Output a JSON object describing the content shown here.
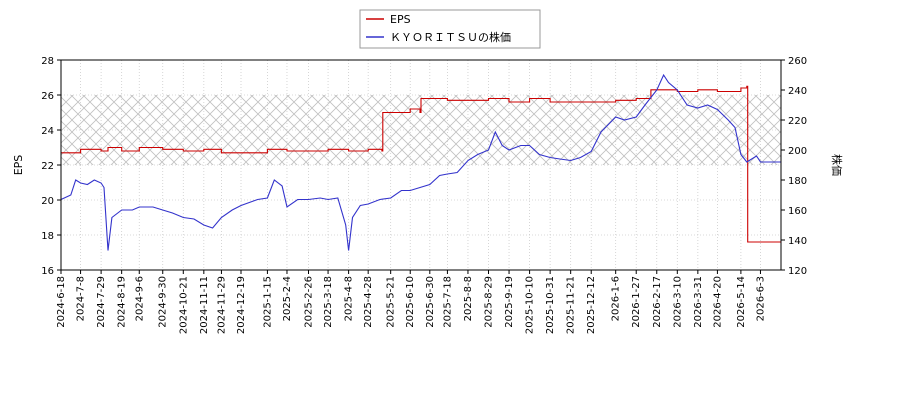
{
  "chart_data": {
    "type": "line",
    "title": "",
    "legend": {
      "placement": "top-center",
      "entries": [
        {
          "name": "EPS",
          "color": "#cc0000"
        },
        {
          "name": "ＫＹＯＲＩＴＳＵの株価",
          "color": "#3333cc"
        }
      ]
    },
    "y_left": {
      "label": "EPS",
      "range": [
        16,
        28
      ],
      "ticks": [
        "16",
        "18",
        "20",
        "22",
        "24",
        "26",
        "28"
      ]
    },
    "y_right": {
      "label": "株価",
      "range": [
        120,
        260
      ],
      "ticks": [
        "120",
        "140",
        "160",
        "180",
        "200",
        "220",
        "240",
        "260"
      ]
    },
    "x": {
      "range": [
        "2024-06-18",
        "2026-06-24"
      ],
      "tick_labels": [
        "2024-6-18",
        "2024-7-8",
        "2024-7-29",
        "2024-8-19",
        "2024-9-6",
        "2024-9-30",
        "2024-10-21",
        "2024-11-11",
        "2024-11-29",
        "2024-12-19",
        "2025-1-15",
        "2025-2-4",
        "2025-2-26",
        "2025-3-18",
        "2025-4-8",
        "2025-4-28",
        "2025-5-21",
        "2025-6-10",
        "2025-6-30",
        "2025-7-18",
        "2025-8-8",
        "2025-8-29",
        "2025-9-19",
        "2025-10-10",
        "2025-10-31",
        "2025-11-21",
        "2025-12-12",
        "2026-1-6",
        "2026-1-27",
        "2026-2-17",
        "2026-3-10",
        "2026-3-31",
        "2026-4-20",
        "2026-5-14",
        "2026-6-3"
      ]
    },
    "shaded_band": {
      "axis": "left",
      "from": 22,
      "to": 26,
      "pattern": "crosshatch"
    },
    "grid": true,
    "series": [
      {
        "name": "EPS",
        "axis": "left",
        "color": "#cc0000",
        "points": [
          [
            "2024-6-18",
            22.7
          ],
          [
            "2024-7-8",
            22.9
          ],
          [
            "2024-7-29",
            22.8
          ],
          [
            "2024-8-5",
            23.0
          ],
          [
            "2024-8-19",
            22.8
          ],
          [
            "2024-9-6",
            23.0
          ],
          [
            "2024-9-30",
            22.9
          ],
          [
            "2024-10-21",
            22.8
          ],
          [
            "2024-11-11",
            22.9
          ],
          [
            "2024-11-29",
            22.7
          ],
          [
            "2024-12-19",
            22.7
          ],
          [
            "2025-1-15",
            22.9
          ],
          [
            "2025-2-4",
            22.8
          ],
          [
            "2025-2-26",
            22.8
          ],
          [
            "2025-3-18",
            22.9
          ],
          [
            "2025-4-8",
            22.8
          ],
          [
            "2025-4-28",
            22.9
          ],
          [
            "2025-5-12",
            22.8
          ],
          [
            "2025-5-13",
            25.0
          ],
          [
            "2025-5-21",
            25.0
          ],
          [
            "2025-6-10",
            25.2
          ],
          [
            "2025-6-20",
            25.0
          ],
          [
            "2025-6-21",
            25.8
          ],
          [
            "2025-6-30",
            25.8
          ],
          [
            "2025-7-18",
            25.7
          ],
          [
            "2025-8-8",
            25.7
          ],
          [
            "2025-8-29",
            25.8
          ],
          [
            "2025-9-19",
            25.6
          ],
          [
            "2025-10-10",
            25.8
          ],
          [
            "2025-10-31",
            25.6
          ],
          [
            "2025-11-21",
            25.6
          ],
          [
            "2025-12-12",
            25.6
          ],
          [
            "2026-1-6",
            25.7
          ],
          [
            "2026-1-27",
            25.8
          ],
          [
            "2026-2-10",
            25.8
          ],
          [
            "2026-2-11",
            26.3
          ],
          [
            "2026-2-17",
            26.3
          ],
          [
            "2026-3-10",
            26.2
          ],
          [
            "2026-3-31",
            26.3
          ],
          [
            "2026-4-20",
            26.2
          ],
          [
            "2026-5-10",
            26.2
          ],
          [
            "2026-5-14",
            26.4
          ],
          [
            "2026-5-20",
            26.5
          ],
          [
            "2026-5-21",
            17.6
          ],
          [
            "2026-6-24",
            17.6
          ]
        ]
      },
      {
        "name": "ＫＹＯＲＩＴＳＵの株価",
        "axis": "right",
        "color": "#3333cc",
        "points": [
          [
            "2024-6-18",
            167
          ],
          [
            "2024-6-28",
            170
          ],
          [
            "2024-7-3",
            180
          ],
          [
            "2024-7-8",
            178
          ],
          [
            "2024-7-15",
            177
          ],
          [
            "2024-7-22",
            180
          ],
          [
            "2024-7-29",
            178
          ],
          [
            "2024-8-1",
            175
          ],
          [
            "2024-8-5",
            133
          ],
          [
            "2024-8-9",
            155
          ],
          [
            "2024-8-19",
            160
          ],
          [
            "2024-8-30",
            160
          ],
          [
            "2024-9-6",
            162
          ],
          [
            "2024-9-20",
            162
          ],
          [
            "2024-9-30",
            160
          ],
          [
            "2024-10-10",
            158
          ],
          [
            "2024-10-21",
            155
          ],
          [
            "2024-11-1",
            154
          ],
          [
            "2024-11-11",
            150
          ],
          [
            "2024-11-20",
            148
          ],
          [
            "2024-11-29",
            155
          ],
          [
            "2024-12-10",
            160
          ],
          [
            "2024-12-19",
            163
          ],
          [
            "2025-1-5",
            167
          ],
          [
            "2025-1-15",
            168
          ],
          [
            "2025-1-22",
            180
          ],
          [
            "2025-1-30",
            176
          ],
          [
            "2025-2-4",
            162
          ],
          [
            "2025-2-15",
            167
          ],
          [
            "2025-2-26",
            167
          ],
          [
            "2025-3-10",
            168
          ],
          [
            "2025-3-18",
            167
          ],
          [
            "2025-3-28",
            168
          ],
          [
            "2025-4-5",
            150
          ],
          [
            "2025-4-8",
            133
          ],
          [
            "2025-4-12",
            155
          ],
          [
            "2025-4-20",
            163
          ],
          [
            "2025-4-28",
            164
          ],
          [
            "2025-5-10",
            167
          ],
          [
            "2025-5-21",
            168
          ],
          [
            "2025-6-1",
            173
          ],
          [
            "2025-6-10",
            173
          ],
          [
            "2025-6-20",
            175
          ],
          [
            "2025-6-30",
            177
          ],
          [
            "2025-7-10",
            183
          ],
          [
            "2025-7-18",
            184
          ],
          [
            "2025-7-28",
            185
          ],
          [
            "2025-8-8",
            193
          ],
          [
            "2025-8-18",
            197
          ],
          [
            "2025-8-29",
            200
          ],
          [
            "2025-9-5",
            212
          ],
          [
            "2025-9-12",
            203
          ],
          [
            "2025-9-19",
            200
          ],
          [
            "2025-10-1",
            203
          ],
          [
            "2025-10-10",
            203
          ],
          [
            "2025-10-20",
            197
          ],
          [
            "2025-10-31",
            195
          ],
          [
            "2025-11-10",
            194
          ],
          [
            "2025-11-21",
            193
          ],
          [
            "2025-12-1",
            195
          ],
          [
            "2025-12-12",
            199
          ],
          [
            "2025-12-22",
            212
          ],
          [
            "2026-1-6",
            222
          ],
          [
            "2026-1-15",
            220
          ],
          [
            "2026-1-27",
            222
          ],
          [
            "2026-2-5",
            230
          ],
          [
            "2026-2-17",
            240
          ],
          [
            "2026-2-24",
            250
          ],
          [
            "2026-3-1",
            245
          ],
          [
            "2026-3-10",
            240
          ],
          [
            "2026-3-20",
            230
          ],
          [
            "2026-3-31",
            228
          ],
          [
            "2026-4-10",
            230
          ],
          [
            "2026-4-20",
            227
          ],
          [
            "2026-5-1",
            220
          ],
          [
            "2026-5-8",
            215
          ],
          [
            "2026-5-14",
            197
          ],
          [
            "2026-5-20",
            192
          ],
          [
            "2026-5-30",
            196
          ],
          [
            "2026-6-3",
            192
          ],
          [
            "2026-6-24",
            192
          ]
        ]
      }
    ]
  }
}
